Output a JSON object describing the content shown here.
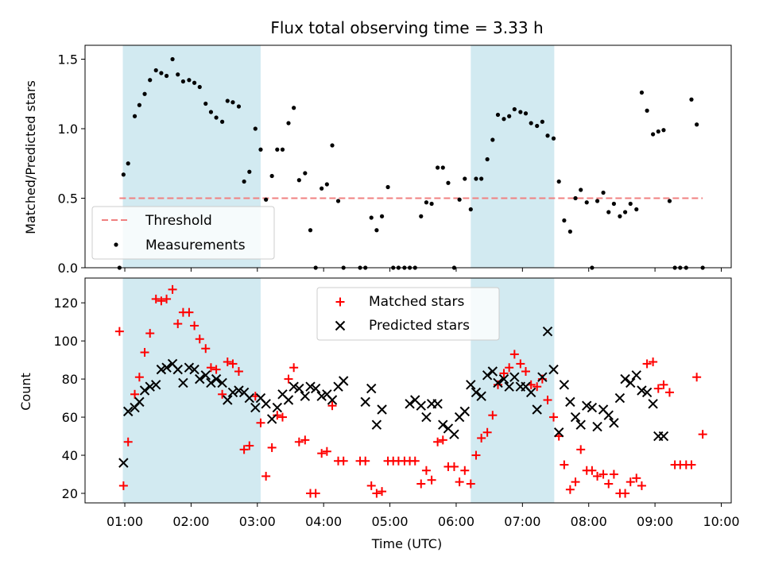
{
  "colors": {
    "band": "#add8e6",
    "measurement": "#000000",
    "threshold": "#f08080",
    "matched": "#ff0000",
    "predicted": "#000000"
  },
  "chart_data": [
    {
      "type": "scatter",
      "title": "Flux total observing time = 3.33 h",
      "xlabel": "",
      "ylabel": "Matched/Predicted stars",
      "xlim": [
        0.4,
        10.15
      ],
      "ylim": [
        0,
        1.6
      ],
      "yticks": [
        0.0,
        0.5,
        1.0,
        1.5
      ],
      "y_tick_labels": [
        "0.0",
        "0.5",
        "1.0",
        "1.5"
      ],
      "grid": false,
      "legend_position": "lower-left",
      "shaded_intervals": [
        [
          0.97,
          3.05
        ],
        [
          6.22,
          7.48
        ]
      ],
      "threshold": {
        "name": "Threshold",
        "value": 0.5,
        "x_range": [
          0.92,
          9.72
        ]
      },
      "series": [
        {
          "name": "Measurements",
          "x": [
            0.92,
            0.98,
            1.05,
            1.15,
            1.22,
            1.3,
            1.38,
            1.47,
            1.55,
            1.63,
            1.72,
            1.8,
            1.88,
            1.97,
            2.05,
            2.13,
            2.22,
            2.3,
            2.38,
            2.47,
            2.55,
            2.63,
            2.72,
            2.8,
            2.88,
            2.97,
            3.05,
            3.13,
            3.22,
            3.3,
            3.38,
            3.47,
            3.55,
            3.63,
            3.72,
            3.8,
            3.88,
            3.97,
            4.05,
            4.13,
            4.22,
            4.3,
            4.55,
            4.63,
            4.72,
            4.8,
            4.88,
            4.97,
            5.05,
            5.13,
            5.22,
            5.3,
            5.38,
            5.47,
            5.55,
            5.63,
            5.72,
            5.8,
            5.88,
            5.97,
            6.05,
            6.13,
            6.22,
            6.3,
            6.38,
            6.47,
            6.55,
            6.63,
            6.72,
            6.8,
            6.88,
            6.97,
            7.05,
            7.13,
            7.22,
            7.3,
            7.38,
            7.47,
            7.55,
            7.63,
            7.72,
            7.8,
            7.88,
            7.97,
            8.05,
            8.13,
            8.22,
            8.3,
            8.38,
            8.47,
            8.55,
            8.63,
            8.72,
            8.8,
            8.88,
            8.97,
            9.05,
            9.13,
            9.22,
            9.3,
            9.38,
            9.47,
            9.55,
            9.63,
            9.72
          ],
          "y": [
            0.0,
            0.67,
            0.75,
            1.09,
            1.17,
            1.25,
            1.35,
            1.42,
            1.4,
            1.38,
            1.5,
            1.39,
            1.34,
            1.35,
            1.33,
            1.3,
            1.18,
            1.12,
            1.08,
            1.05,
            1.2,
            1.19,
            1.16,
            0.62,
            0.69,
            1.0,
            0.85,
            0.49,
            0.66,
            0.85,
            0.85,
            1.04,
            1.15,
            0.63,
            0.68,
            0.27,
            0.0,
            0.57,
            0.6,
            0.88,
            0.48,
            0.0,
            0.0,
            0.0,
            0.36,
            0.27,
            0.37,
            0.58,
            0.0,
            0.0,
            0.0,
            0.0,
            0.0,
            0.37,
            0.47,
            0.46,
            0.72,
            0.72,
            0.61,
            0.0,
            0.49,
            0.64,
            0.42,
            0.64,
            0.64,
            0.78,
            0.92,
            1.1,
            1.07,
            1.09,
            1.14,
            1.12,
            1.11,
            1.04,
            1.02,
            1.05,
            0.95,
            0.93,
            0.62,
            0.34,
            0.26,
            0.5,
            0.56,
            0.47,
            0.0,
            0.48,
            0.54,
            0.4,
            0.46,
            0.37,
            0.4,
            0.46,
            0.42,
            1.26,
            1.13,
            0.96,
            0.98,
            0.99,
            0.48,
            0.0,
            0.0,
            0.0,
            1.21,
            1.03,
            0.0
          ]
        }
      ]
    },
    {
      "type": "scatter",
      "title": "",
      "xlabel": "Time (UTC)",
      "ylabel": "Count",
      "xlim": [
        0.4,
        10.15
      ],
      "ylim": [
        15,
        133
      ],
      "yticks": [
        20,
        40,
        60,
        80,
        100,
        120
      ],
      "xticks": [
        1,
        2,
        3,
        4,
        5,
        6,
        7,
        8,
        9,
        10
      ],
      "x_tick_labels": [
        "01:00",
        "02:00",
        "03:00",
        "04:00",
        "05:00",
        "06:00",
        "07:00",
        "08:00",
        "09:00",
        "10:00"
      ],
      "grid": false,
      "legend_position": "upper-center",
      "shaded_intervals": [
        [
          0.97,
          3.05
        ],
        [
          6.22,
          7.48
        ]
      ],
      "series": [
        {
          "name": "Matched stars",
          "marker": "plus",
          "points": [
            [
              0.92,
              105
            ],
            [
              0.98,
              24
            ],
            [
              1.05,
              47
            ],
            [
              1.15,
              72
            ],
            [
              1.22,
              81
            ],
            [
              1.3,
              94
            ],
            [
              1.38,
              104
            ],
            [
              1.47,
              122
            ],
            [
              1.55,
              121
            ],
            [
              1.63,
              122
            ],
            [
              1.72,
              127
            ],
            [
              1.8,
              109
            ],
            [
              1.88,
              115
            ],
            [
              1.97,
              115
            ],
            [
              2.05,
              108
            ],
            [
              2.13,
              101
            ],
            [
              2.22,
              96
            ],
            [
              2.3,
              86
            ],
            [
              2.38,
              85
            ],
            [
              2.47,
              72
            ],
            [
              2.55,
              89
            ],
            [
              2.63,
              88
            ],
            [
              2.72,
              84
            ],
            [
              2.8,
              43
            ],
            [
              2.88,
              45
            ],
            [
              2.97,
              71
            ],
            [
              3.05,
              57
            ],
            [
              3.13,
              29
            ],
            [
              3.22,
              44
            ],
            [
              3.3,
              61
            ],
            [
              3.38,
              60
            ],
            [
              3.47,
              80
            ],
            [
              3.55,
              86
            ],
            [
              3.63,
              47
            ],
            [
              3.72,
              48
            ],
            [
              3.8,
              20
            ],
            [
              3.88,
              20
            ],
            [
              3.97,
              41
            ],
            [
              4.05,
              42
            ],
            [
              4.13,
              66
            ],
            [
              4.22,
              37
            ],
            [
              4.3,
              37
            ],
            [
              4.55,
              37
            ],
            [
              4.63,
              37
            ],
            [
              4.72,
              24
            ],
            [
              4.8,
              20
            ],
            [
              4.88,
              21
            ],
            [
              4.97,
              37
            ],
            [
              5.05,
              37
            ],
            [
              5.13,
              37
            ],
            [
              5.22,
              37
            ],
            [
              5.3,
              37
            ],
            [
              5.38,
              37
            ],
            [
              5.47,
              25
            ],
            [
              5.55,
              32
            ],
            [
              5.63,
              27
            ],
            [
              5.72,
              47
            ],
            [
              5.8,
              48
            ],
            [
              5.88,
              34
            ],
            [
              5.97,
              34
            ],
            [
              6.05,
              26
            ],
            [
              6.13,
              32
            ],
            [
              6.22,
              25
            ],
            [
              6.3,
              40
            ],
            [
              6.38,
              49
            ],
            [
              6.47,
              52
            ],
            [
              6.55,
              61
            ],
            [
              6.63,
              77
            ],
            [
              6.72,
              83
            ],
            [
              6.8,
              86
            ],
            [
              6.88,
              93
            ],
            [
              6.97,
              88
            ],
            [
              7.05,
              84
            ],
            [
              7.13,
              77
            ],
            [
              7.22,
              76
            ],
            [
              7.3,
              80
            ],
            [
              7.38,
              69
            ],
            [
              7.47,
              60
            ],
            [
              7.55,
              50
            ],
            [
              7.63,
              35
            ],
            [
              7.72,
              22
            ],
            [
              7.8,
              26
            ],
            [
              7.88,
              43
            ],
            [
              7.97,
              32
            ],
            [
              8.05,
              32
            ],
            [
              8.13,
              29
            ],
            [
              8.22,
              30
            ],
            [
              8.3,
              25
            ],
            [
              8.38,
              30
            ],
            [
              8.47,
              20
            ],
            [
              8.55,
              20
            ],
            [
              8.63,
              26
            ],
            [
              8.72,
              28
            ],
            [
              8.8,
              24
            ],
            [
              8.88,
              88
            ],
            [
              8.97,
              89
            ],
            [
              9.05,
              75
            ],
            [
              9.13,
              77
            ],
            [
              9.22,
              73
            ],
            [
              9.3,
              35
            ],
            [
              9.38,
              35
            ],
            [
              9.47,
              35
            ],
            [
              9.55,
              35
            ],
            [
              9.63,
              81
            ],
            [
              9.72,
              51
            ]
          ]
        },
        {
          "name": "Predicted stars",
          "marker": "x",
          "points": [
            [
              0.98,
              36
            ],
            [
              1.05,
              63
            ],
            [
              1.15,
              65
            ],
            [
              1.22,
              68
            ],
            [
              1.3,
              74
            ],
            [
              1.38,
              76
            ],
            [
              1.47,
              77
            ],
            [
              1.55,
              85
            ],
            [
              1.63,
              86
            ],
            [
              1.72,
              88
            ],
            [
              1.8,
              85
            ],
            [
              1.88,
              78
            ],
            [
              1.97,
              86
            ],
            [
              2.05,
              85
            ],
            [
              2.13,
              80
            ],
            [
              2.22,
              82
            ],
            [
              2.3,
              78
            ],
            [
              2.38,
              80
            ],
            [
              2.47,
              78
            ],
            [
              2.55,
              69
            ],
            [
              2.63,
              73
            ],
            [
              2.72,
              74
            ],
            [
              2.8,
              73
            ],
            [
              2.88,
              70
            ],
            [
              2.97,
              65
            ],
            [
              3.05,
              70
            ],
            [
              3.13,
              67
            ],
            [
              3.22,
              59
            ],
            [
              3.3,
              65
            ],
            [
              3.38,
              72
            ],
            [
              3.47,
              69
            ],
            [
              3.55,
              76
            ],
            [
              3.63,
              75
            ],
            [
              3.72,
              71
            ],
            [
              3.8,
              76
            ],
            [
              3.88,
              75
            ],
            [
              3.97,
              71
            ],
            [
              4.05,
              72
            ],
            [
              4.13,
              69
            ],
            [
              4.22,
              76
            ],
            [
              4.3,
              79
            ],
            [
              4.63,
              68
            ],
            [
              4.72,
              75
            ],
            [
              4.8,
              56
            ],
            [
              4.88,
              64
            ],
            [
              5.3,
              67
            ],
            [
              5.38,
              69
            ],
            [
              5.47,
              66
            ],
            [
              5.55,
              60
            ],
            [
              5.63,
              67
            ],
            [
              5.72,
              67
            ],
            [
              5.8,
              56
            ],
            [
              5.88,
              54
            ],
            [
              5.97,
              51
            ],
            [
              6.05,
              60
            ],
            [
              6.13,
              63
            ],
            [
              6.22,
              77
            ],
            [
              6.3,
              73
            ],
            [
              6.38,
              71
            ],
            [
              6.47,
              82
            ],
            [
              6.55,
              84
            ],
            [
              6.63,
              78
            ],
            [
              6.72,
              80
            ],
            [
              6.8,
              76
            ],
            [
              6.88,
              81
            ],
            [
              6.97,
              76
            ],
            [
              7.05,
              76
            ],
            [
              7.13,
              73
            ],
            [
              7.22,
              64
            ],
            [
              7.3,
              81
            ],
            [
              7.38,
              105
            ],
            [
              7.47,
              85
            ],
            [
              7.55,
              52
            ],
            [
              7.63,
              77
            ],
            [
              7.72,
              68
            ],
            [
              7.8,
              60
            ],
            [
              7.88,
              56
            ],
            [
              7.97,
              66
            ],
            [
              8.05,
              65
            ],
            [
              8.13,
              55
            ],
            [
              8.22,
              64
            ],
            [
              8.3,
              61
            ],
            [
              8.38,
              57
            ],
            [
              8.47,
              70
            ],
            [
              8.55,
              80
            ],
            [
              8.63,
              78
            ],
            [
              8.72,
              82
            ],
            [
              8.8,
              74
            ],
            [
              8.88,
              73
            ],
            [
              8.97,
              67
            ],
            [
              9.05,
              50
            ],
            [
              9.13,
              50
            ]
          ]
        }
      ]
    }
  ]
}
